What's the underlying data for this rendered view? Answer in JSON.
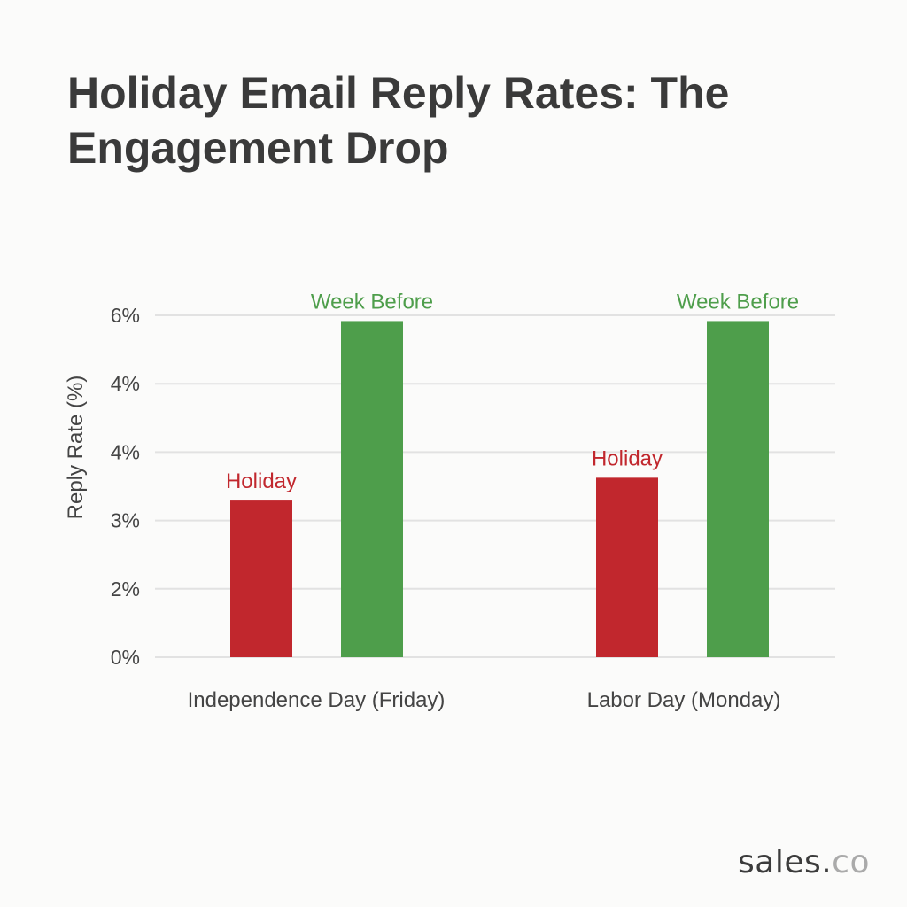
{
  "chart_data": {
    "type": "bar",
    "title": "Holiday Email Reply Rates: The Engagement Drop",
    "xlabel": "",
    "ylabel": "Reply Rate (%)",
    "ylim": [
      0,
      6
    ],
    "y_tick_labels": [
      "0%",
      "2%",
      "3%",
      "4%",
      "4%",
      "6%"
    ],
    "grid": true,
    "categories": [
      "Independence Day (Friday)",
      "Labor Day (Monday)"
    ],
    "series": [
      {
        "name": "Holiday",
        "color": "#c1272d",
        "values": [
          2.75,
          3.15
        ]
      },
      {
        "name": "Week Before",
        "color": "#4e9e4b",
        "values": [
          5.9,
          5.9
        ]
      }
    ]
  },
  "brand": {
    "logo_text": "sales.co",
    "logo_main": "sales.",
    "logo_accent": "co"
  }
}
